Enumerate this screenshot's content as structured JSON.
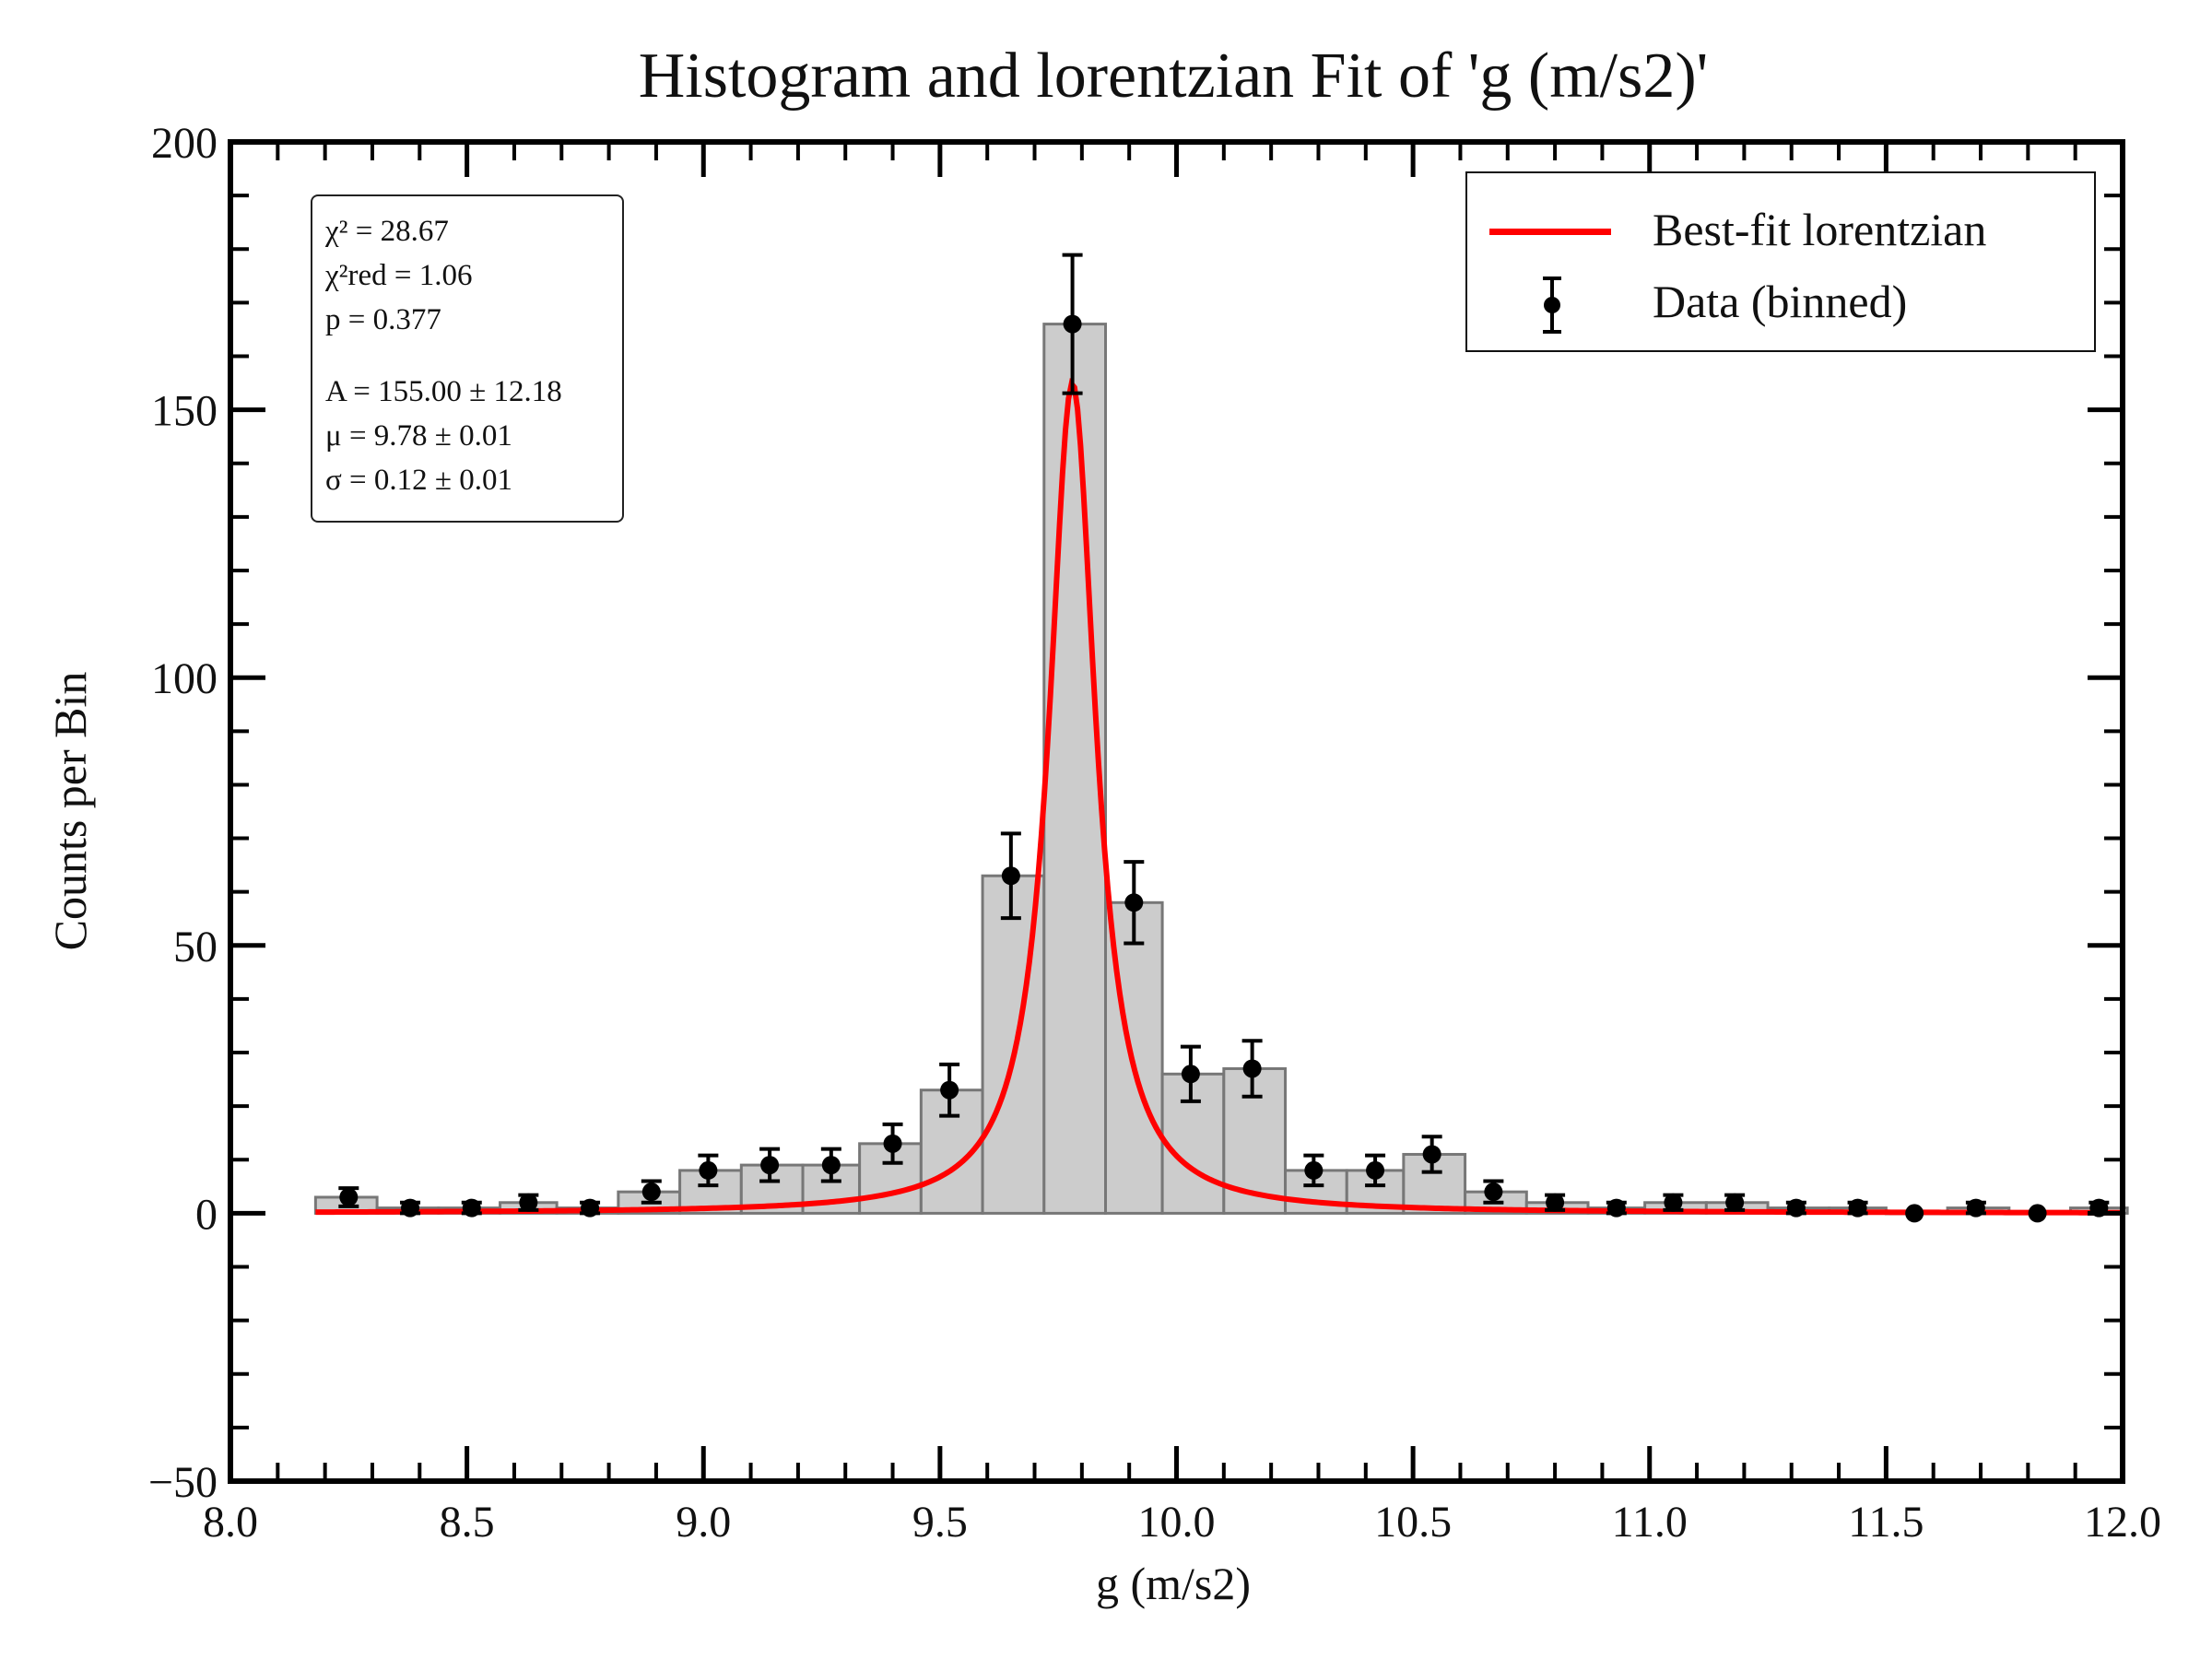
{
  "chart_data": {
    "type": "bar",
    "title": "Histogram and lorentzian Fit of 'g (m/s2)'",
    "xlabel": "g (m/s2)",
    "ylabel": "Counts per Bin",
    "xlim": [
      8.0,
      12.0
    ],
    "ylim": [
      -50,
      200
    ],
    "x_ticks": [
      "8.0",
      "8.5",
      "9.0",
      "9.5",
      "10.0",
      "10.5",
      "11.0",
      "11.5",
      "12.0"
    ],
    "y_ticks": [
      "−50",
      "0",
      "50",
      "100",
      "150",
      "200"
    ],
    "grid": false,
    "legend_position": "top-right",
    "histogram": {
      "bin_edges": [
        8.18,
        8.31,
        8.44,
        8.57,
        8.69,
        8.82,
        8.95,
        9.08,
        9.21,
        9.33,
        9.46,
        9.59,
        9.72,
        9.85,
        9.97,
        10.1,
        10.23,
        10.36,
        10.48,
        10.61,
        10.74,
        10.87,
        10.99,
        11.12,
        11.25,
        11.38,
        11.5,
        11.63,
        11.76,
        11.89,
        12.01
      ],
      "counts": [
        3,
        1,
        1,
        2,
        1,
        4,
        8,
        9,
        9,
        13,
        23,
        63,
        166,
        58,
        26,
        27,
        8,
        8,
        11,
        4,
        2,
        1,
        2,
        2,
        1,
        1,
        0,
        1,
        0,
        1
      ],
      "fill_color": "#cccccc",
      "edge_color": "#777777"
    },
    "series": [
      {
        "name": "Data (binned)",
        "kind": "errorbar",
        "color": "#000000",
        "x": [
          8.25,
          8.38,
          8.51,
          8.63,
          8.76,
          8.89,
          9.01,
          9.14,
          9.27,
          9.4,
          9.52,
          9.65,
          9.78,
          9.91,
          10.03,
          10.16,
          10.29,
          10.42,
          10.54,
          10.67,
          10.8,
          10.93,
          11.05,
          11.18,
          11.31,
          11.44,
          11.56,
          11.69,
          11.82,
          11.95
        ],
        "y": [
          3,
          1,
          1,
          2,
          1,
          4,
          8,
          9,
          9,
          13,
          23,
          63,
          166,
          58,
          26,
          27,
          8,
          8,
          11,
          4,
          2,
          1,
          2,
          2,
          1,
          1,
          0,
          1,
          0,
          1
        ],
        "yerr": [
          1.7,
          1.0,
          1.0,
          1.4,
          1.0,
          2.0,
          2.8,
          3.0,
          3.0,
          3.6,
          4.8,
          7.9,
          12.9,
          7.6,
          5.1,
          5.2,
          2.8,
          2.8,
          3.3,
          2.0,
          1.4,
          1.0,
          1.4,
          1.4,
          1.0,
          1.0,
          0,
          1.0,
          0,
          1.0
        ]
      },
      {
        "name": "Best-fit lorentzian",
        "kind": "line",
        "color": "#ff0000",
        "model": "lorentzian",
        "x_range": [
          8.18,
          12.0
        ]
      }
    ],
    "fit_params": {
      "A": 155.0,
      "mu": 9.78,
      "sigma": 0.12
    },
    "annotation": {
      "chi2": "χ² = 28.67",
      "chi2_red": "χ²red = 1.06",
      "p": "p = 0.377",
      "A": "A = 155.00 ± 12.18",
      "mu": "μ = 9.78 ± 0.01",
      "sigma": "σ = 0.12 ± 0.01"
    }
  }
}
